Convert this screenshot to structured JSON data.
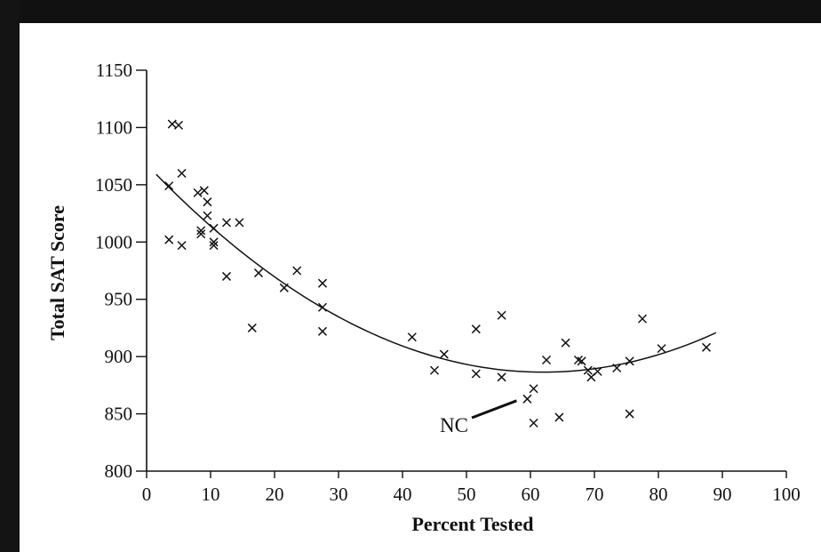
{
  "chart_data": {
    "type": "scatter",
    "title": "",
    "xlabel": "Percent Tested",
    "ylabel": "Total SAT Score",
    "xlim": [
      0,
      100
    ],
    "ylim": [
      800,
      1150
    ],
    "x_ticks": [
      "0",
      "10",
      "20",
      "30",
      "40",
      "50",
      "60",
      "70",
      "80",
      "90",
      "100"
    ],
    "y_ticks": [
      "800",
      "850",
      "900",
      "950",
      "1000",
      "1050",
      "1100",
      "1150"
    ],
    "grid": false,
    "legend": "none",
    "series": [
      {
        "marker": "x",
        "points": [
          [
            3.5,
            1049
          ],
          [
            3.5,
            1002
          ],
          [
            4,
            1103
          ],
          [
            5,
            1102
          ],
          [
            5.5,
            1060
          ],
          [
            5.5,
            997
          ],
          [
            8,
            1043
          ],
          [
            8.5,
            1010
          ],
          [
            8.5,
            1007
          ],
          [
            9,
            1045
          ],
          [
            9.5,
            1035
          ],
          [
            9.5,
            1023
          ],
          [
            10.5,
            1012
          ],
          [
            10.5,
            1000
          ],
          [
            10.5,
            997
          ],
          [
            12.5,
            1017
          ],
          [
            12.5,
            970
          ],
          [
            14.5,
            1017
          ],
          [
            16.5,
            925
          ],
          [
            17.5,
            973
          ],
          [
            21.5,
            960
          ],
          [
            23.5,
            975
          ],
          [
            27.5,
            964
          ],
          [
            27.5,
            943
          ],
          [
            27.5,
            922
          ],
          [
            41.5,
            917
          ],
          [
            45,
            888
          ],
          [
            46.5,
            902
          ],
          [
            51.5,
            924
          ],
          [
            51.5,
            885
          ],
          [
            55.5,
            936
          ],
          [
            55.5,
            882
          ],
          [
            59.5,
            863
          ],
          [
            60.5,
            872
          ],
          [
            60.5,
            842
          ],
          [
            62.5,
            897
          ],
          [
            64.5,
            847
          ],
          [
            65.5,
            912
          ],
          [
            67.5,
            897
          ],
          [
            68,
            896
          ],
          [
            69,
            888
          ],
          [
            69.5,
            882
          ],
          [
            70.5,
            887
          ],
          [
            73.5,
            890
          ],
          [
            75.5,
            896
          ],
          [
            75.5,
            850
          ],
          [
            77.5,
            933
          ],
          [
            80.5,
            907
          ],
          [
            87.5,
            908
          ]
        ]
      }
    ],
    "fit_curve": {
      "type": "quadratic",
      "x_range": [
        1.5,
        89
      ],
      "points": [
        [
          1.5,
          1060
        ],
        [
          10,
          1012
        ],
        [
          20,
          970
        ],
        [
          30,
          936
        ],
        [
          40,
          909
        ],
        [
          50,
          893
        ],
        [
          62,
          885
        ],
        [
          70,
          890
        ],
        [
          80,
          903
        ],
        [
          89,
          920
        ]
      ]
    },
    "annotations": [
      {
        "text": "NC",
        "points_to": [
          59.5,
          863
        ]
      }
    ]
  },
  "colors": {
    "ink": "#111111",
    "background": "#ffffff",
    "frame": "#141414"
  }
}
